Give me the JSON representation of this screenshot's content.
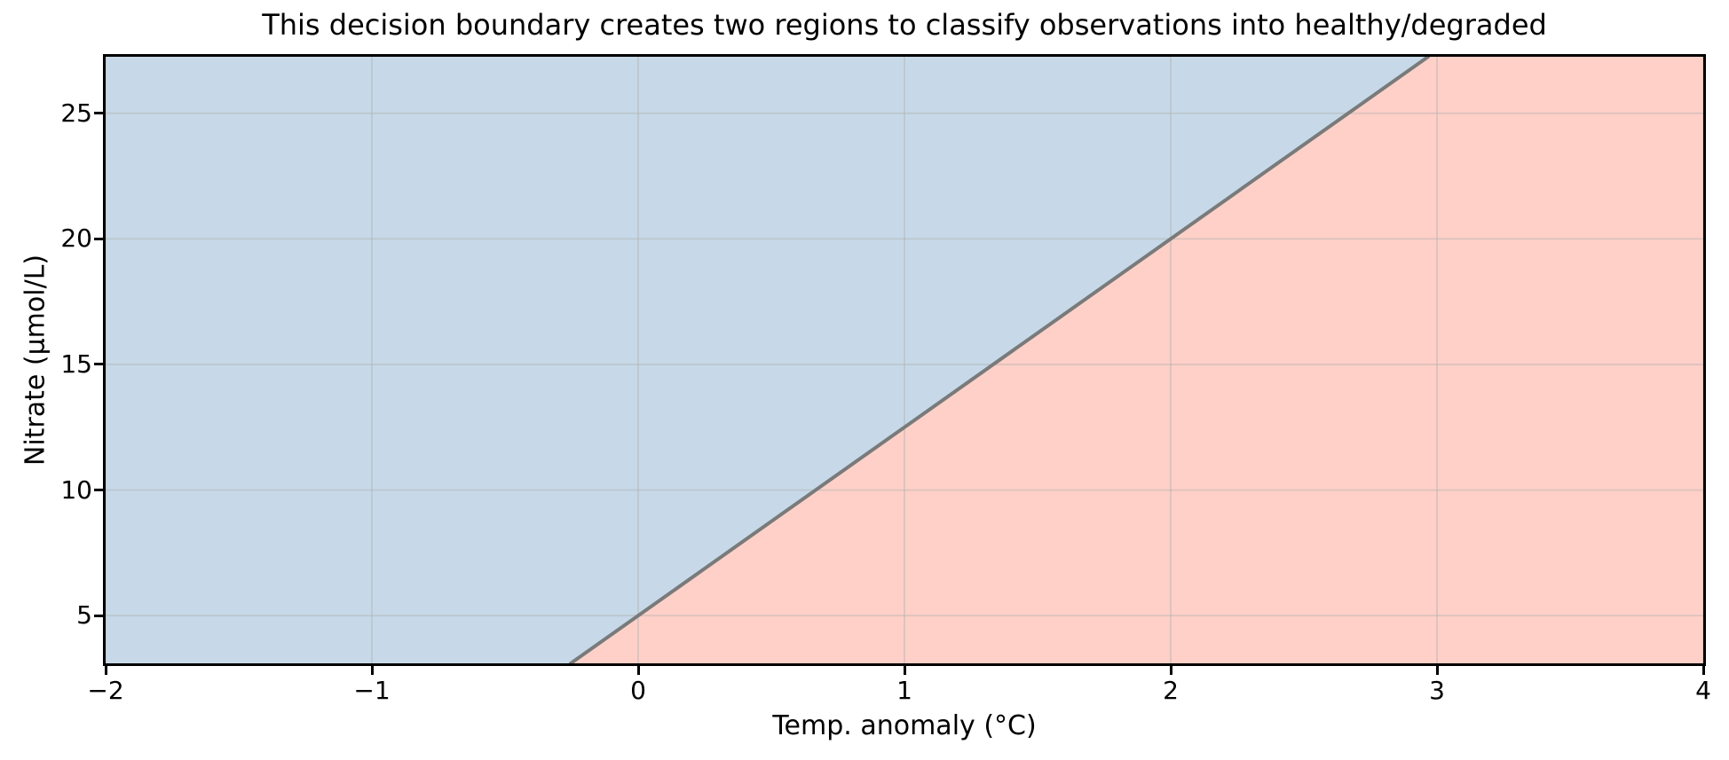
{
  "chart_data": {
    "type": "area",
    "title": "This decision boundary creates two regions to classify observations into healthy/degraded",
    "xlabel": "Temp. anomaly (°C)",
    "ylabel": "Nitrate (µmol/L)",
    "xlim": [
      -2,
      4
    ],
    "ylim": [
      3.1,
      27.25
    ],
    "x_ticks": [
      -2,
      -1,
      0,
      1,
      2,
      3,
      4
    ],
    "x_tick_labels": [
      "−2",
      "−1",
      "0",
      "1",
      "2",
      "3",
      "4"
    ],
    "y_ticks": [
      5,
      10,
      15,
      20,
      25
    ],
    "y_tick_labels": [
      "5",
      "10",
      "15",
      "20",
      "25"
    ],
    "grid": true,
    "grid_color": "rgba(176,176,176,0.4)",
    "legend": false,
    "background_color": "#ffffff",
    "spine_color": "#000000",
    "boundary_line": {
      "slope": 7.5,
      "intercept": 5.0,
      "equation": "nitrate = 7.5 × temp_anomaly + 5",
      "color": "#7a7a7a",
      "width": 4,
      "x_at_bottom": -0.253,
      "x_at_top": 2.967
    },
    "regions": [
      {
        "name": "healthy",
        "location": "upper-left of boundary",
        "color": "#c7d9e8"
      },
      {
        "name": "degraded",
        "location": "lower-right of boundary",
        "color": "#ffd0c8"
      }
    ]
  }
}
